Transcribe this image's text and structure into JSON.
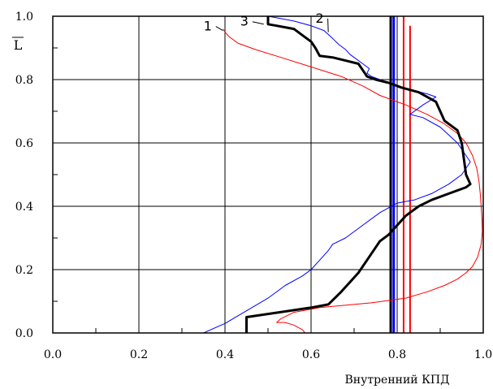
{
  "chart_data": {
    "type": "line",
    "title": "",
    "xlabel": "Внутренний КПД",
    "ylabel": "L",
    "ylabel_overline": true,
    "xlim": [
      0.0,
      1.0
    ],
    "ylim": [
      0.0,
      1.0
    ],
    "x_ticks": [
      "0.0",
      "0.2",
      "0.4",
      "0.6",
      "0.8",
      "1.0"
    ],
    "y_ticks": [
      "0.0",
      "0.2",
      "0.4",
      "0.6",
      "0.8",
      "1.0"
    ],
    "grid": true,
    "series": [
      {
        "name": "1",
        "color": "#ff0000",
        "width": 1,
        "points": [
          [
            0.586,
            0.0
          ],
          [
            0.58,
            0.01
          ],
          [
            0.56,
            0.025
          ],
          [
            0.54,
            0.033
          ],
          [
            0.52,
            0.033
          ],
          [
            0.53,
            0.045
          ],
          [
            0.56,
            0.065
          ],
          [
            0.62,
            0.08
          ],
          [
            0.74,
            0.095
          ],
          [
            0.82,
            0.11
          ],
          [
            0.87,
            0.13
          ],
          [
            0.91,
            0.15
          ],
          [
            0.94,
            0.17
          ],
          [
            0.96,
            0.19
          ],
          [
            0.975,
            0.21
          ],
          [
            0.987,
            0.24
          ],
          [
            0.995,
            0.28
          ],
          [
            0.998,
            0.32
          ],
          [
            0.997,
            0.36
          ],
          [
            0.995,
            0.4
          ],
          [
            0.993,
            0.44
          ],
          [
            0.99,
            0.48
          ],
          [
            0.985,
            0.52
          ],
          [
            0.975,
            0.56
          ],
          [
            0.96,
            0.6
          ],
          [
            0.94,
            0.63
          ],
          [
            0.91,
            0.66
          ],
          [
            0.87,
            0.69
          ],
          [
            0.82,
            0.72
          ],
          [
            0.76,
            0.75
          ],
          [
            0.72,
            0.78
          ],
          [
            0.67,
            0.81
          ],
          [
            0.6,
            0.84
          ],
          [
            0.53,
            0.87
          ],
          [
            0.47,
            0.895
          ],
          [
            0.43,
            0.915
          ],
          [
            0.41,
            0.935
          ],
          [
            0.4,
            0.95
          ],
          [
            0.395,
            0.96
          ]
        ]
      },
      {
        "name": "2",
        "color": "#0000ff",
        "width": 1,
        "points": [
          [
            0.35,
            0.0
          ],
          [
            0.4,
            0.03
          ],
          [
            0.45,
            0.07
          ],
          [
            0.5,
            0.11
          ],
          [
            0.54,
            0.15
          ],
          [
            0.58,
            0.18
          ],
          [
            0.6,
            0.2
          ],
          [
            0.62,
            0.23
          ],
          [
            0.64,
            0.26
          ],
          [
            0.65,
            0.28
          ],
          [
            0.68,
            0.3
          ],
          [
            0.72,
            0.34
          ],
          [
            0.76,
            0.38
          ],
          [
            0.8,
            0.41
          ],
          [
            0.84,
            0.42
          ],
          [
            0.88,
            0.44
          ],
          [
            0.92,
            0.47
          ],
          [
            0.95,
            0.5
          ],
          [
            0.97,
            0.54
          ],
          [
            0.96,
            0.56
          ],
          [
            0.94,
            0.6
          ],
          [
            0.9,
            0.65
          ],
          [
            0.86,
            0.68
          ],
          [
            0.83,
            0.69
          ],
          [
            0.86,
            0.72
          ],
          [
            0.89,
            0.745
          ],
          [
            0.87,
            0.755
          ],
          [
            0.84,
            0.765
          ],
          [
            0.81,
            0.775
          ],
          [
            0.78,
            0.79
          ],
          [
            0.76,
            0.8
          ],
          [
            0.74,
            0.81
          ],
          [
            0.73,
            0.82
          ],
          [
            0.735,
            0.835
          ],
          [
            0.72,
            0.85
          ],
          [
            0.7,
            0.87
          ],
          [
            0.69,
            0.88
          ],
          [
            0.68,
            0.895
          ],
          [
            0.665,
            0.91
          ],
          [
            0.65,
            0.93
          ],
          [
            0.63,
            0.955
          ],
          [
            0.6,
            0.97
          ],
          [
            0.56,
            0.985
          ],
          [
            0.52,
            0.995
          ],
          [
            0.5,
            1.0
          ]
        ]
      },
      {
        "name": "3",
        "color": "#000000",
        "width": 3,
        "points": [
          [
            0.45,
            0.0
          ],
          [
            0.45,
            0.05
          ],
          [
            0.6,
            0.08
          ],
          [
            0.64,
            0.09
          ],
          [
            0.67,
            0.13
          ],
          [
            0.69,
            0.16
          ],
          [
            0.71,
            0.19
          ],
          [
            0.73,
            0.23
          ],
          [
            0.75,
            0.27
          ],
          [
            0.76,
            0.29
          ],
          [
            0.78,
            0.31
          ],
          [
            0.8,
            0.34
          ],
          [
            0.82,
            0.37
          ],
          [
            0.85,
            0.4
          ],
          [
            0.88,
            0.42
          ],
          [
            0.92,
            0.44
          ],
          [
            0.96,
            0.46
          ],
          [
            0.97,
            0.47
          ],
          [
            0.96,
            0.5
          ],
          [
            0.95,
            0.6
          ],
          [
            0.94,
            0.64
          ],
          [
            0.91,
            0.67
          ],
          [
            0.9,
            0.7
          ],
          [
            0.89,
            0.73
          ],
          [
            0.85,
            0.76
          ],
          [
            0.81,
            0.775
          ],
          [
            0.78,
            0.79
          ],
          [
            0.75,
            0.8
          ],
          [
            0.73,
            0.81
          ],
          [
            0.72,
            0.83
          ],
          [
            0.71,
            0.85
          ],
          [
            0.68,
            0.86
          ],
          [
            0.65,
            0.87
          ],
          [
            0.62,
            0.875
          ],
          [
            0.61,
            0.9
          ],
          [
            0.6,
            0.92
          ],
          [
            0.58,
            0.94
          ],
          [
            0.56,
            0.96
          ],
          [
            0.52,
            0.97
          ],
          [
            0.5,
            0.975
          ],
          [
            0.5,
            0.99
          ],
          [
            0.5,
            1.0
          ]
        ]
      }
    ],
    "reference_lines": [
      {
        "x": 0.785,
        "color": "#000000",
        "width": 3
      },
      {
        "x": 0.792,
        "color": "#0000ff",
        "width": 3
      },
      {
        "x": 0.815,
        "color": "#ff0000",
        "width": 2
      },
      {
        "x": 0.83,
        "ymax": 0.97,
        "color": "#ff0000",
        "width": 2
      }
    ],
    "annotations": [
      {
        "text": "1",
        "label_pos": [
          0.36,
          0.955
        ],
        "leader_end": [
          0.395,
          0.955
        ]
      },
      {
        "text": "3",
        "label_pos": [
          0.445,
          0.97
        ],
        "leader_end": [
          0.49,
          0.975
        ]
      },
      {
        "text": "2",
        "label_pos": [
          0.62,
          0.98
        ],
        "leader_end": [
          0.64,
          0.95
        ]
      }
    ]
  }
}
